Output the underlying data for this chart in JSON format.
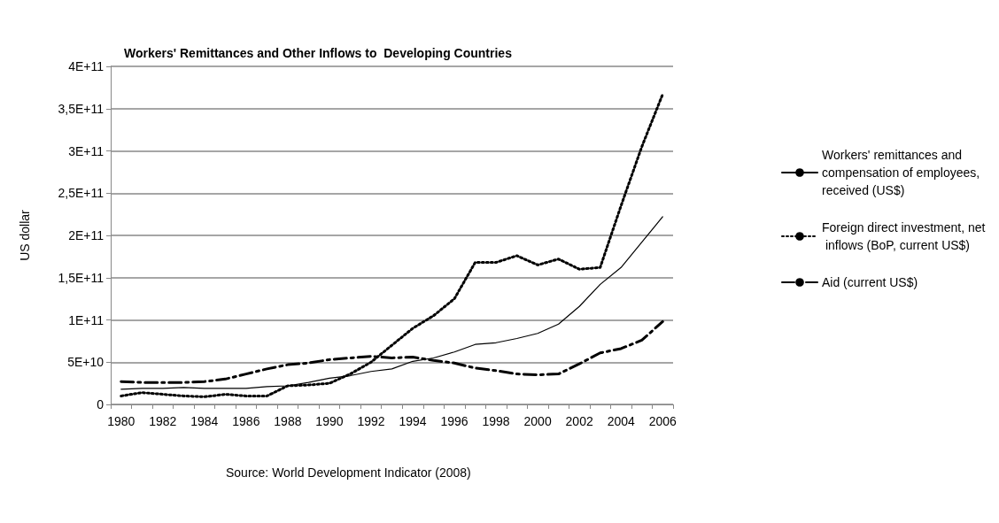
{
  "chart_data": {
    "type": "line",
    "title": "Workers' Remittances and Other Inflows to  Developing Countries",
    "ylabel": "US dollar",
    "categories": [
      "1980",
      null,
      "1982",
      null,
      "1984",
      null,
      "1986",
      null,
      "1988",
      null,
      "1990",
      null,
      "1992",
      null,
      "1994",
      null,
      "1996",
      null,
      "1998",
      null,
      "2000",
      null,
      "2002",
      null,
      "2004",
      null,
      "2006"
    ],
    "series": [
      {
        "name": "Workers' remittances and compensation of employees, received (US$)",
        "color": "#000000",
        "line_style": "solid",
        "values": [
          18000000000,
          19000000000,
          19000000000,
          20000000000,
          19000000000,
          19000000000,
          19000000000,
          21000000000,
          22000000000,
          26000000000,
          31000000000,
          34000000000,
          39000000000,
          42000000000,
          51000000000,
          55000000000,
          62000000000,
          71000000000,
          73000000000,
          78000000000,
          84000000000,
          95000000000,
          116000000000,
          142000000000,
          162000000000,
          192000000000,
          222000000000
        ]
      },
      {
        "name": "Foreign direct investment, net inflows (BoP, current US$)",
        "color": "#000000",
        "line_style": "dotted",
        "values": [
          10000000000,
          14000000000,
          12000000000,
          10000000000,
          9000000000,
          12000000000,
          10000000000,
          10000000000,
          22000000000,
          23000000000,
          25000000000,
          36000000000,
          50000000000,
          70000000000,
          90000000000,
          105000000000,
          125000000000,
          168000000000,
          168000000000,
          176000000000,
          165000000000,
          172000000000,
          160000000000,
          162000000000,
          235000000000,
          305000000000,
          367000000000
        ]
      },
      {
        "name": "Aid (current US$)",
        "color": "#000000",
        "line_style": "dashed",
        "values": [
          27000000000,
          26000000000,
          26000000000,
          26000000000,
          27000000000,
          30000000000,
          36000000000,
          42000000000,
          47000000000,
          49000000000,
          53000000000,
          55000000000,
          57000000000,
          55000000000,
          56000000000,
          52000000000,
          49000000000,
          43000000000,
          40000000000,
          36000000000,
          35000000000,
          36000000000,
          48000000000,
          61000000000,
          66000000000,
          76000000000,
          98000000000
        ]
      }
    ],
    "ylim": [
      0,
      400000000000
    ],
    "yticks": [
      0,
      {
        "value": 50000000000,
        "label": "5E+10"
      },
      {
        "value": 100000000000,
        "label": "1E+11"
      },
      {
        "value": 150000000000,
        "label": "1,5E+11"
      },
      {
        "value": 200000000000,
        "label": "2E+11"
      },
      {
        "value": 250000000000,
        "label": "2,5E+11"
      },
      {
        "value": 300000000000,
        "label": "3E+11"
      },
      {
        "value": 350000000000,
        "label": "3,5E+11"
      },
      {
        "value": 400000000000,
        "label": "4E+11"
      }
    ],
    "grid": "y",
    "legend": "right",
    "marker": "none",
    "annotations": [
      "Source: World Development Indicator (2008)"
    ]
  }
}
